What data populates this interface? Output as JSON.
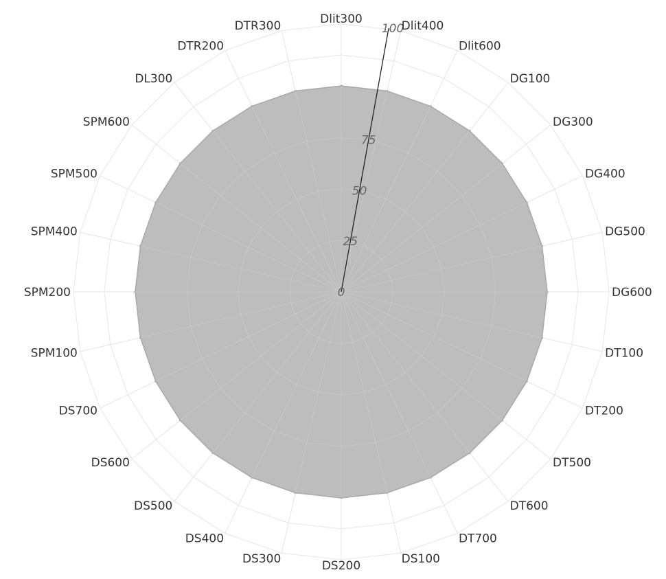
{
  "chart_data": {
    "type": "radar",
    "categories": [
      "Dlit300",
      "Dlit400",
      "Dlit600",
      "DG100",
      "DG300",
      "DG400",
      "DG500",
      "DG600",
      "DT100",
      "DT200",
      "DT500",
      "DT600",
      "DT700",
      "DS100",
      "DS200",
      "DS300",
      "DS400",
      "DS500",
      "DS600",
      "DS700",
      "SPM100",
      "SPM200",
      "SPM400",
      "SPM500",
      "SPM600",
      "DL300",
      "DTR200",
      "DTR300"
    ],
    "series": [
      {
        "values": [
          100,
          100,
          100,
          100,
          100,
          100,
          100,
          100,
          100,
          100,
          100,
          100,
          100,
          100,
          100,
          100,
          100,
          100,
          100,
          100,
          100,
          100,
          100,
          100,
          100,
          100,
          100,
          100
        ]
      }
    ],
    "rlim": [
      0,
      100
    ],
    "r_ticks": [
      "0",
      "25",
      "50",
      "75",
      "100"
    ],
    "grid": true,
    "colors": {
      "fill": "#b9b9b9",
      "stroke": "#a9a9a9",
      "grid": "#e6e6e6",
      "axis": "#222222"
    }
  }
}
